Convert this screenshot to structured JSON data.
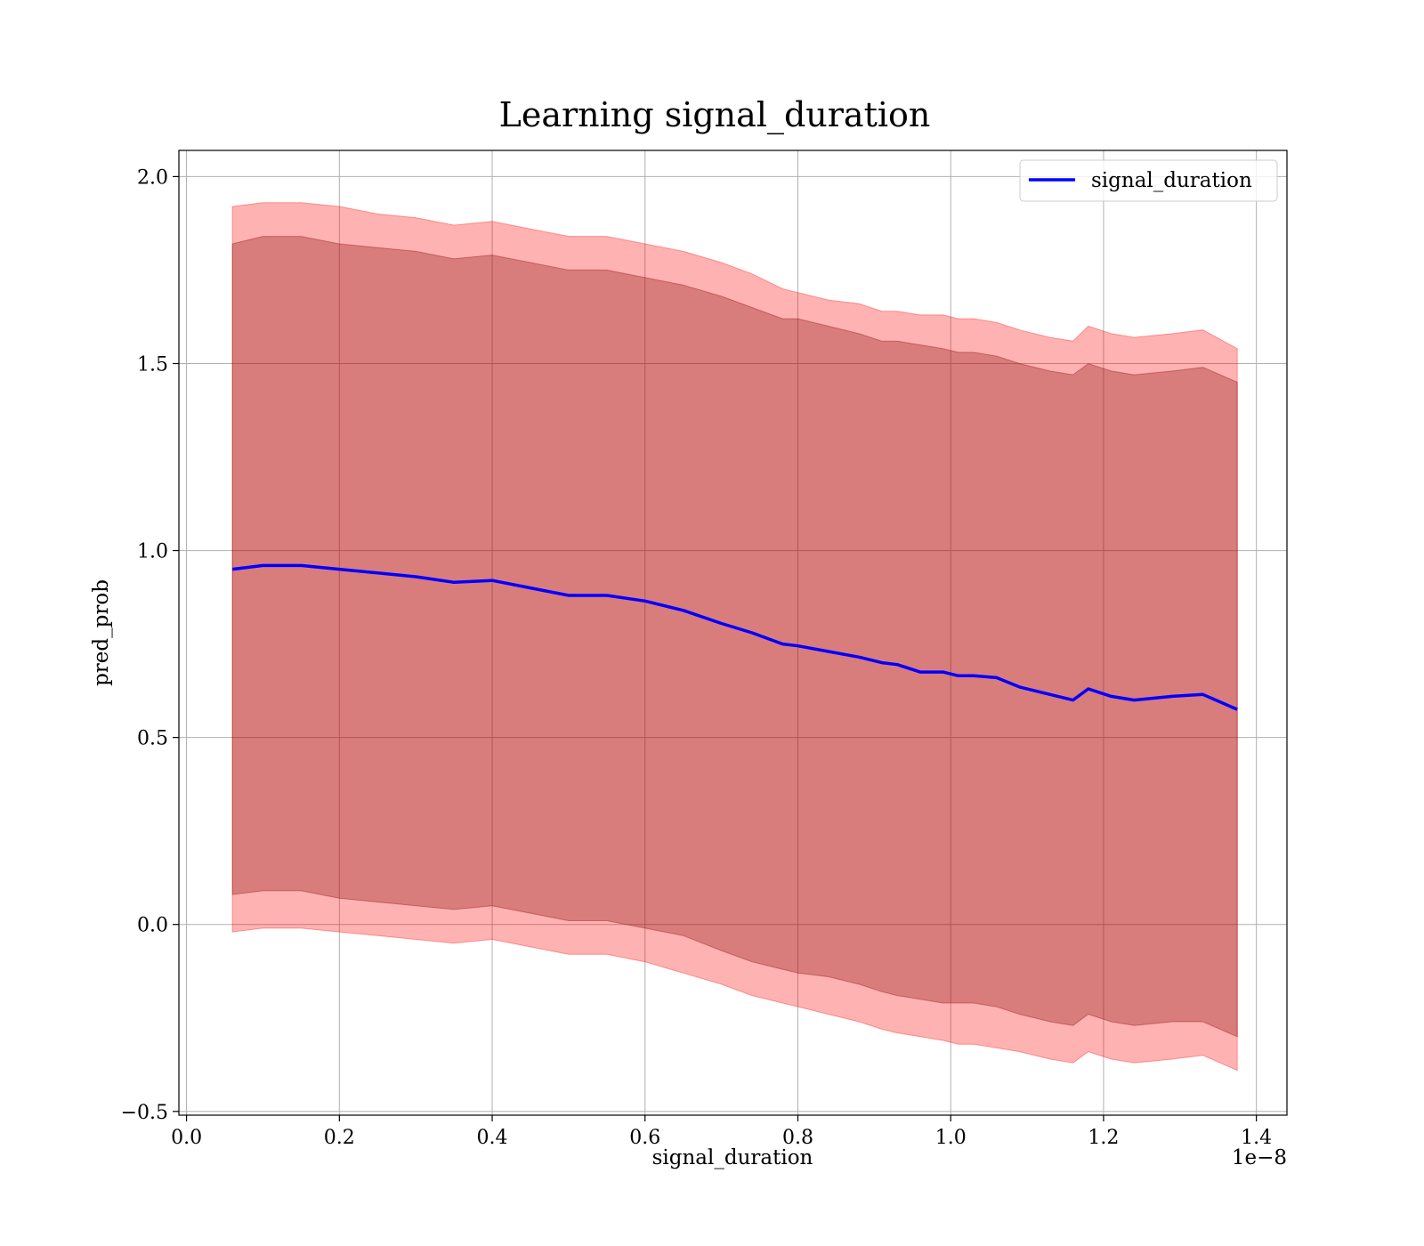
{
  "chart_data": {
    "type": "line",
    "title": "Learning signal_duration",
    "xlabel": "signal_duration",
    "ylabel": "pred_prob",
    "x_offset_label": "1e−8",
    "xlim": [
      -0.01,
      1.44
    ],
    "ylim": [
      -0.51,
      2.07
    ],
    "x_ticks": [
      0.0,
      0.2,
      0.4,
      0.6,
      0.8,
      1.0,
      1.2,
      1.4
    ],
    "x_tick_labels": [
      "0.0",
      "0.2",
      "0.4",
      "0.6",
      "0.8",
      "1.0",
      "1.2",
      "1.4"
    ],
    "y_ticks": [
      -0.5,
      0.0,
      0.5,
      1.0,
      1.5,
      2.0
    ],
    "y_tick_labels": [
      "−0.5",
      "0.0",
      "0.5",
      "1.0",
      "1.5",
      "2.0"
    ],
    "grid": true,
    "legend_position": "top-right",
    "colors": {
      "line": "#0000ff",
      "outer_band": "#ff0000",
      "inner_band": "#800000",
      "band_alpha": 0.3,
      "grid": "#b0b0b0"
    },
    "series": [
      {
        "name": "signal_duration",
        "x": [
          0.06,
          0.1,
          0.15,
          0.2,
          0.25,
          0.3,
          0.35,
          0.4,
          0.45,
          0.5,
          0.55,
          0.6,
          0.65,
          0.7,
          0.74,
          0.78,
          0.8,
          0.84,
          0.88,
          0.91,
          0.93,
          0.96,
          0.99,
          1.01,
          1.03,
          1.06,
          1.09,
          1.13,
          1.16,
          1.18,
          1.21,
          1.24,
          1.29,
          1.33,
          1.375
        ],
        "y": [
          0.95,
          0.96,
          0.96,
          0.95,
          0.94,
          0.93,
          0.915,
          0.92,
          0.9,
          0.88,
          0.88,
          0.865,
          0.84,
          0.805,
          0.78,
          0.75,
          0.745,
          0.73,
          0.715,
          0.7,
          0.695,
          0.675,
          0.675,
          0.665,
          0.665,
          0.66,
          0.635,
          0.615,
          0.6,
          0.63,
          0.61,
          0.6,
          0.61,
          0.615,
          0.575
        ]
      }
    ],
    "bands": [
      {
        "level": "outer",
        "x": [
          0.06,
          0.1,
          0.15,
          0.2,
          0.25,
          0.3,
          0.35,
          0.4,
          0.45,
          0.5,
          0.55,
          0.6,
          0.65,
          0.7,
          0.74,
          0.78,
          0.8,
          0.84,
          0.88,
          0.91,
          0.93,
          0.96,
          0.99,
          1.01,
          1.03,
          1.06,
          1.09,
          1.13,
          1.16,
          1.18,
          1.21,
          1.24,
          1.29,
          1.33,
          1.375
        ],
        "upper": [
          1.92,
          1.93,
          1.93,
          1.92,
          1.9,
          1.89,
          1.87,
          1.88,
          1.86,
          1.84,
          1.84,
          1.82,
          1.8,
          1.77,
          1.74,
          1.7,
          1.69,
          1.67,
          1.66,
          1.64,
          1.64,
          1.63,
          1.63,
          1.62,
          1.62,
          1.61,
          1.59,
          1.57,
          1.56,
          1.6,
          1.58,
          1.57,
          1.58,
          1.59,
          1.54
        ],
        "lower": [
          -0.02,
          -0.01,
          -0.01,
          -0.02,
          -0.03,
          -0.04,
          -0.05,
          -0.04,
          -0.06,
          -0.08,
          -0.08,
          -0.1,
          -0.13,
          -0.16,
          -0.19,
          -0.21,
          -0.22,
          -0.24,
          -0.26,
          -0.28,
          -0.29,
          -0.3,
          -0.31,
          -0.32,
          -0.32,
          -0.33,
          -0.34,
          -0.36,
          -0.37,
          -0.34,
          -0.36,
          -0.37,
          -0.36,
          -0.35,
          -0.39
        ]
      },
      {
        "level": "inner",
        "x": [
          0.06,
          0.1,
          0.15,
          0.2,
          0.25,
          0.3,
          0.35,
          0.4,
          0.45,
          0.5,
          0.55,
          0.6,
          0.65,
          0.7,
          0.74,
          0.78,
          0.8,
          0.84,
          0.88,
          0.91,
          0.93,
          0.96,
          0.99,
          1.01,
          1.03,
          1.06,
          1.09,
          1.13,
          1.16,
          1.18,
          1.21,
          1.24,
          1.29,
          1.33,
          1.375
        ],
        "upper": [
          1.82,
          1.84,
          1.84,
          1.82,
          1.81,
          1.8,
          1.78,
          1.79,
          1.77,
          1.75,
          1.75,
          1.73,
          1.71,
          1.68,
          1.65,
          1.62,
          1.62,
          1.6,
          1.58,
          1.56,
          1.56,
          1.55,
          1.54,
          1.53,
          1.53,
          1.52,
          1.5,
          1.48,
          1.47,
          1.5,
          1.48,
          1.47,
          1.48,
          1.49,
          1.45
        ],
        "lower": [
          0.08,
          0.09,
          0.09,
          0.07,
          0.06,
          0.05,
          0.04,
          0.05,
          0.03,
          0.01,
          0.01,
          -0.01,
          -0.03,
          -0.07,
          -0.1,
          -0.12,
          -0.13,
          -0.14,
          -0.16,
          -0.18,
          -0.19,
          -0.2,
          -0.21,
          -0.21,
          -0.21,
          -0.22,
          -0.24,
          -0.26,
          -0.27,
          -0.24,
          -0.26,
          -0.27,
          -0.26,
          -0.26,
          -0.3
        ]
      }
    ]
  }
}
